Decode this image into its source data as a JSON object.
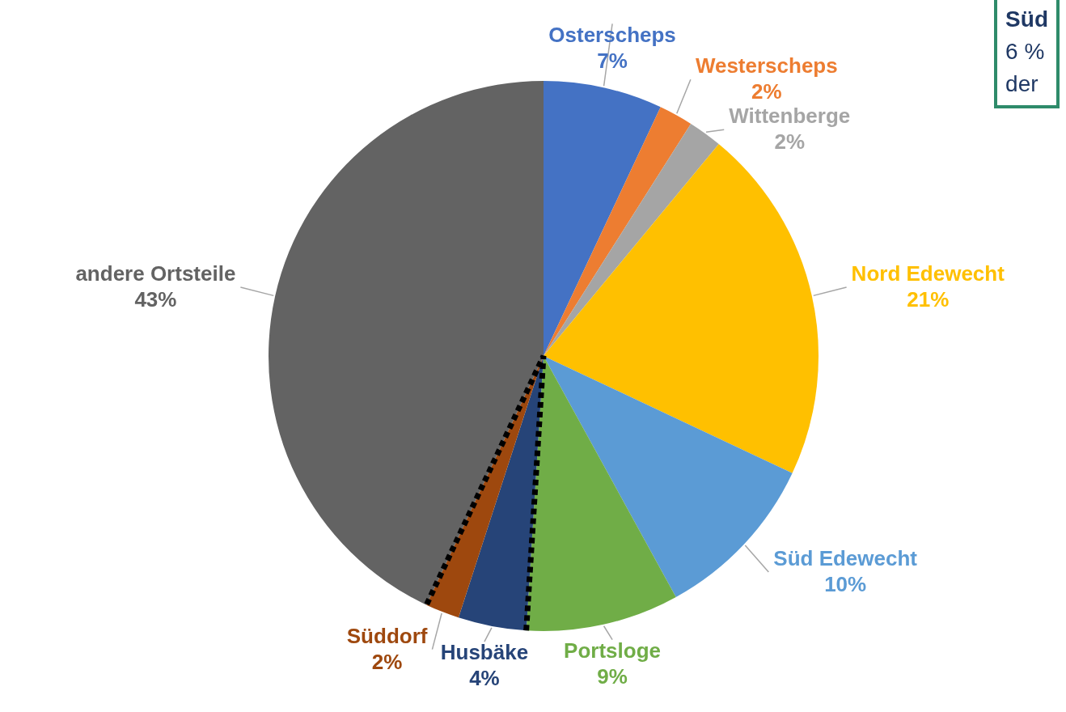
{
  "chart_data": {
    "type": "pie",
    "categories": [
      "Osterscheps",
      "Westerscheps",
      "Wittenberge",
      "Nord Edewecht",
      "Süd Edewecht",
      "Portsloge",
      "Husbäke",
      "Süddorf",
      "andere Ortsteile"
    ],
    "values": [
      7,
      2,
      2,
      21,
      10,
      9,
      4,
      2,
      43
    ],
    "colors": [
      "#4472c4",
      "#ed7d31",
      "#a5a5a5",
      "#ffc000",
      "#5b9bd5",
      "#70ad47",
      "#264478",
      "#9e480e",
      "#636363"
    ],
    "value_labels": [
      "7%",
      "2%",
      "2%",
      "21%",
      "10%",
      "9%",
      "4%",
      "2%",
      "43%"
    ],
    "annotations": [
      "Süd",
      "6 %",
      "der"
    ],
    "legend": false
  }
}
